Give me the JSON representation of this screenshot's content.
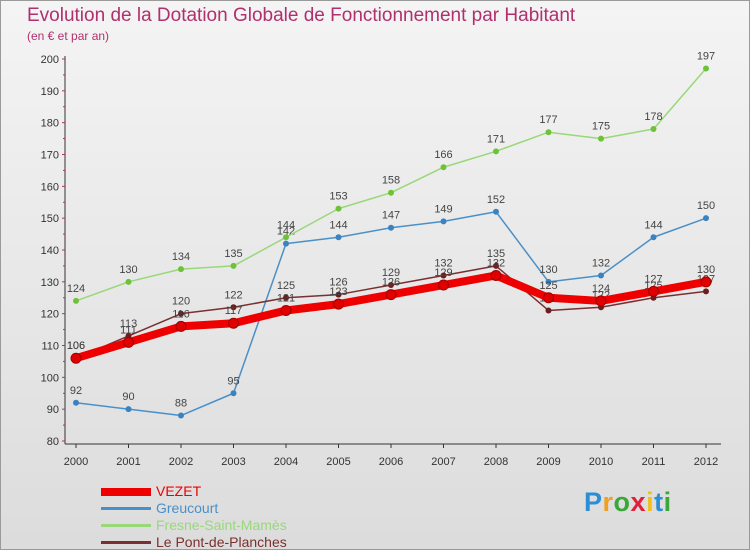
{
  "chart_data": {
    "type": "line",
    "title": "Evolution de la Dotation Globale de Fonctionnement par Habitant",
    "subtitle": "(en € et par an)",
    "xlabel": "",
    "ylabel": "",
    "ylim": [
      80,
      200
    ],
    "yticks": [
      80,
      90,
      100,
      110,
      120,
      130,
      140,
      150,
      160,
      170,
      180,
      190,
      200
    ],
    "categories": [
      "2000",
      "2001",
      "2002",
      "2003",
      "2004",
      "2005",
      "2006",
      "2007",
      "2008",
      "2009",
      "2010",
      "2011",
      "2012"
    ],
    "series": [
      {
        "name": "Greucourt",
        "color": "#4a90c8",
        "dot": "#3a82c0",
        "values": [
          92,
          90,
          88,
          95,
          142,
          144,
          147,
          149,
          152,
          130,
          132,
          144,
          150
        ]
      },
      {
        "name": "Fresne-Saint-Mamès",
        "color": "#98d878",
        "dot": "#6ec23a",
        "values": [
          124,
          130,
          134,
          135,
          144,
          153,
          158,
          166,
          171,
          177,
          175,
          178,
          197
        ]
      },
      {
        "name": "Le Pont-de-Planches",
        "color": "#7a3030",
        "dot": "#6a1f1f",
        "values": [
          106,
          113,
          120,
          122,
          125,
          126,
          129,
          132,
          135,
          121,
          122,
          125,
          127
        ]
      },
      {
        "name": "VEZET",
        "color": "#ee0000",
        "dot": "#e00000",
        "values": [
          106,
          111,
          116,
          117,
          121,
          123,
          126,
          129,
          132,
          125,
          124,
          127,
          130
        ]
      }
    ],
    "legend": [
      "VEZET",
      "Greucourt",
      "Fresne-Saint-Mamès",
      "Le Pont-de-Planches"
    ],
    "legend_position": "bottom-left"
  },
  "logo": {
    "letters": [
      "P",
      "r",
      "o",
      "x",
      "i",
      "t",
      "i"
    ],
    "colors": [
      "#2c8fd6",
      "#f0a020",
      "#3aa838",
      "#e0203a",
      "#f0c020",
      "#2c8fd6",
      "#3aa838"
    ]
  }
}
